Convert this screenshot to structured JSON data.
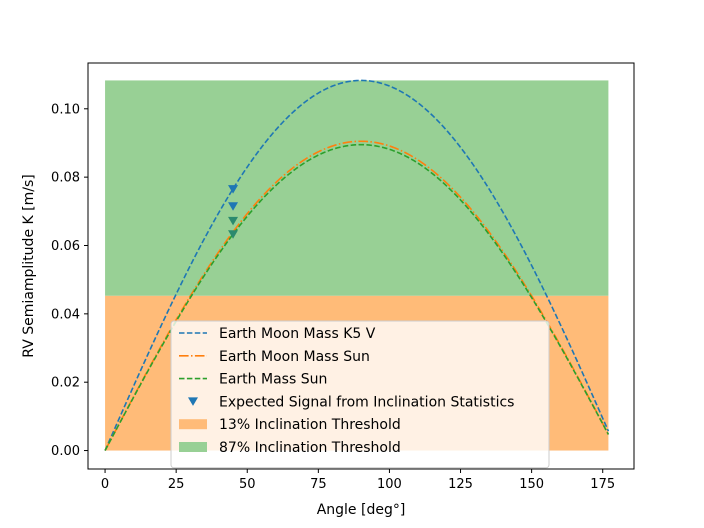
{
  "chart_data": {
    "type": "line",
    "title": "",
    "xlabel": "Angle [deg°]",
    "ylabel": "RV Semiamplitude K [m/s]",
    "xlim": [
      -6,
      186
    ],
    "ylim": [
      -0.0054,
      0.1134
    ],
    "xticks": [
      0,
      25,
      50,
      75,
      100,
      125,
      150,
      175
    ],
    "yticks": [
      0.0,
      0.02,
      0.04,
      0.06,
      0.08,
      0.1
    ],
    "ytick_labels": [
      "0.00",
      "0.02",
      "0.04",
      "0.06",
      "0.08",
      "0.10"
    ],
    "grid": false,
    "legend_position": "bottom-center",
    "bands": [
      {
        "name": "13% Inclination Threshold",
        "x_range": [
          0,
          177
        ],
        "y_range": [
          0,
          0.0453
        ],
        "color": "#ffbb78"
      },
      {
        "name": "87% Inclination Threshold",
        "x_range": [
          0,
          177
        ],
        "y_range": [
          0.0453,
          0.1083
        ],
        "color": "#98d095"
      }
    ],
    "series": [
      {
        "name": "Earth Moon Mass K5 V",
        "kind": "line",
        "style": "dashed",
        "color": "#1f77b4",
        "x_range": [
          0,
          177
        ],
        "amplitude": 0.1083,
        "peak_x": 90
      },
      {
        "name": "Earth Moon Mass Sun",
        "kind": "line",
        "style": "dashdot",
        "color": "#ff7f0e",
        "x_range": [
          0,
          177
        ],
        "amplitude": 0.0905,
        "peak_x": 90
      },
      {
        "name": "Earth Mass Sun",
        "kind": "line",
        "style": "dashed",
        "color": "#2ca02c",
        "x_range": [
          0,
          177
        ],
        "amplitude": 0.0895,
        "peak_x": 90
      },
      {
        "name": "Expected Signal from Inclination Statistics",
        "kind": "scatter",
        "marker": "triangle-down",
        "color": "#1f77b4",
        "points": [
          {
            "x": 45,
            "y": 0.0765,
            "color": "#1f77b4"
          },
          {
            "x": 45,
            "y": 0.0715,
            "color": "#1f77b4"
          },
          {
            "x": 45,
            "y": 0.0672,
            "color": "#2b8a6e"
          },
          {
            "x": 45,
            "y": 0.0633,
            "color": "#2b8a6e"
          }
        ]
      }
    ],
    "legend": [
      {
        "label": "Earth Moon Mass K5 V",
        "kind": "line",
        "style": "dashed",
        "color": "#1f77b4"
      },
      {
        "label": "Earth Moon Mass Sun",
        "kind": "line",
        "style": "dashdot",
        "color": "#ff7f0e"
      },
      {
        "label": "Earth Mass Sun",
        "kind": "line",
        "style": "dashed",
        "color": "#2ca02c"
      },
      {
        "label": "Expected Signal from Inclination Statistics",
        "kind": "marker",
        "color": "#1f77b4"
      },
      {
        "label": "13% Inclination Threshold",
        "kind": "patch",
        "color": "#ffbb78"
      },
      {
        "label": "87% Inclination Threshold",
        "kind": "patch",
        "color": "#98d095"
      }
    ]
  }
}
